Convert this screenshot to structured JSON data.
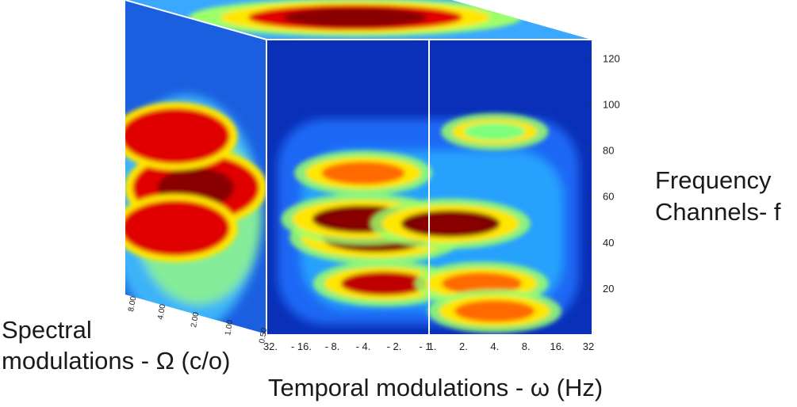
{
  "chart_data": {
    "type": "heatmap",
    "title": "",
    "xlabel": "Temporal modulations - ω (Hz)",
    "ylabel": [
      "Frequency",
      "Channels- f"
    ],
    "zlabel": [
      "Spectral",
      "modulations - Ω (c/o)"
    ],
    "x_ticks": [
      "32.",
      "- 16.",
      "- 8.",
      "- 4.",
      "- 2.",
      "- 1",
      "1.",
      "2.",
      "4.",
      "8.",
      "16.",
      "32"
    ],
    "y_ticks": [
      20,
      40,
      60,
      80,
      100,
      120
    ],
    "y_range": [
      0,
      128
    ],
    "z_ticks": [
      "8.00",
      "4.00",
      "2.00",
      "1.00",
      "0.50"
    ],
    "colormap": [
      "#00008f",
      "#0050ff",
      "#00c8ff",
      "#7dff7a",
      "#ffe600",
      "#ff6a00",
      "#c00000",
      "#800000"
    ],
    "front_face": {
      "axes": "x = temporal modulation (Hz), y = frequency channel",
      "blobs": [
        {
          "x": -3.0,
          "y": 42,
          "level": 1.0
        },
        {
          "x": -4.0,
          "y": 50,
          "level": 0.9
        },
        {
          "x": 1.5,
          "y": 48,
          "level": 0.85
        },
        {
          "x": -4.0,
          "y": 70,
          "level": 0.6
        },
        {
          "x": -2.5,
          "y": 22,
          "level": 0.65
        },
        {
          "x": 3.0,
          "y": 22,
          "level": 0.55
        },
        {
          "x": 4.0,
          "y": 10,
          "level": 0.55
        },
        {
          "x": 4.0,
          "y": 88,
          "level": 0.25
        }
      ]
    },
    "side_face": {
      "axes": "depth = spectral modulation (c/o), y = frequency channel",
      "blobs": [
        {
          "z": 2.0,
          "y": 55,
          "level": 1.0
        },
        {
          "z": 3.0,
          "y": 75,
          "level": 0.75
        },
        {
          "z": 3.0,
          "y": 35,
          "level": 0.75
        }
      ]
    },
    "top_face": {
      "axes": "x = temporal modulation (Hz), depth = spectral modulation (c/o)",
      "blobs": [
        {
          "x": -4.0,
          "z": 2.0,
          "level": 1.0
        }
      ]
    }
  }
}
